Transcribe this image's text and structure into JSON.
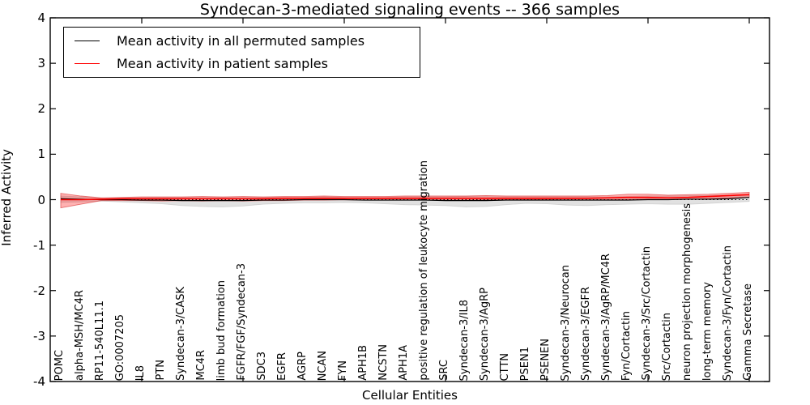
{
  "chart_data": {
    "type": "line",
    "title": "Syndecan-3-mediated signaling events -- 366 samples",
    "xlabel": "Cellular Entities",
    "ylabel": "Inferred Activity",
    "ylim": [
      -4,
      4
    ],
    "yticks": [
      4,
      3,
      2,
      1,
      0,
      -1,
      -2,
      -3,
      -4
    ],
    "ytick_labels": [
      "4",
      "3",
      "2",
      "1",
      "0",
      "-1",
      "-2",
      "-3",
      "-4"
    ],
    "xtick_every": 5,
    "grid": false,
    "legend_position": "upper left",
    "zero_line": {
      "style": "dotted",
      "color": "#000000",
      "y": 0
    },
    "categories": [
      "POMC",
      "alpha-MSH/MC4R",
      "RP11-540L11.1",
      "GO:0007205",
      "IL8",
      "PTN",
      "Syndecan-3/CASK",
      "MC4R",
      "limb bud formation",
      "FGFR/FGF/Syndecan-3",
      "SDC3",
      "EGFR",
      "AGRP",
      "NCAN",
      "FYN",
      "APH1B",
      "NCSTN",
      "APH1A",
      "positive regulation of leukocyte migration",
      "SRC",
      "Syndecan-3/IL8",
      "Syndecan-3/AgRP",
      "CTTN",
      "PSEN1",
      "PSENEN",
      "Syndecan-3/Neurocan",
      "Syndecan-3/EGFR",
      "Syndecan-3/AgRP/MC4R",
      "Fyn/Cortactin",
      "Syndecan-3/Src/Cortactin",
      "Src/Cortactin",
      "neuron projection morphogenesis",
      "long-term memory",
      "Syndecan-3/Fyn/Cortactin",
      "Gamma Secretase"
    ],
    "series": [
      {
        "name": "Mean activity in all permuted samples",
        "color": "#000000",
        "band_color": "#aaaaaa",
        "values": [
          0.02,
          0.01,
          0,
          0,
          -0.01,
          -0.01,
          -0.02,
          -0.02,
          -0.02,
          -0.02,
          -0.01,
          -0.01,
          0,
          0,
          0,
          -0.01,
          -0.01,
          -0.01,
          -0.01,
          -0.02,
          -0.02,
          -0.02,
          -0.01,
          -0.01,
          -0.01,
          -0.01,
          -0.01,
          -0.01,
          -0.01,
          0,
          0,
          0.01,
          0.01,
          0.02,
          0.05
        ],
        "band_lower": [
          -0.06,
          -0.05,
          -0.03,
          -0.05,
          -0.07,
          -0.09,
          -0.13,
          -0.15,
          -0.16,
          -0.14,
          -0.1,
          -0.08,
          -0.07,
          -0.07,
          -0.06,
          -0.07,
          -0.09,
          -0.11,
          -0.12,
          -0.13,
          -0.16,
          -0.15,
          -0.11,
          -0.08,
          -0.09,
          -0.12,
          -0.13,
          -0.11,
          -0.1,
          -0.09,
          -0.1,
          -0.1,
          -0.08,
          -0.06,
          -0.04
        ],
        "band_upper": [
          0.08,
          0.06,
          0.03,
          0.04,
          0.04,
          0.05,
          0.05,
          0.05,
          0.05,
          0.05,
          0.05,
          0.05,
          0.05,
          0.06,
          0.05,
          0.05,
          0.05,
          0.06,
          0.06,
          0.06,
          0.07,
          0.07,
          0.06,
          0.06,
          0.06,
          0.06,
          0.06,
          0.06,
          0.07,
          0.08,
          0.08,
          0.09,
          0.09,
          0.1,
          0.11
        ]
      },
      {
        "name": "Mean activity in patient samples",
        "color": "#ff0000",
        "band_color": "#ff0000",
        "values": [
          0,
          0,
          0.01,
          0.02,
          0.02,
          0.02,
          0.02,
          0.02,
          0.02,
          0.02,
          0.02,
          0.03,
          0.03,
          0.03,
          0.03,
          0.03,
          0.03,
          0.03,
          0.03,
          0.03,
          0.03,
          0.03,
          0.03,
          0.03,
          0.03,
          0.03,
          0.03,
          0.04,
          0.05,
          0.05,
          0.04,
          0.05,
          0.07,
          0.09,
          0.11
        ],
        "band_lower": [
          -0.18,
          -0.1,
          -0.02,
          -0.02,
          -0.02,
          -0.03,
          -0.02,
          -0.03,
          -0.02,
          -0.03,
          -0.02,
          -0.02,
          -0.01,
          -0.01,
          0,
          -0.01,
          -0.01,
          -0.01,
          -0.01,
          -0.01,
          -0.01,
          0,
          0,
          0,
          0,
          -0.01,
          -0.01,
          0,
          0,
          0.01,
          0,
          0.01,
          0.02,
          0.04,
          0.05
        ],
        "band_upper": [
          0.14,
          0.08,
          0.04,
          0.05,
          0.06,
          0.06,
          0.06,
          0.07,
          0.06,
          0.07,
          0.06,
          0.07,
          0.07,
          0.08,
          0.07,
          0.07,
          0.07,
          0.08,
          0.08,
          0.08,
          0.08,
          0.09,
          0.08,
          0.08,
          0.08,
          0.08,
          0.08,
          0.09,
          0.12,
          0.12,
          0.1,
          0.11,
          0.12,
          0.14,
          0.16
        ]
      }
    ]
  }
}
